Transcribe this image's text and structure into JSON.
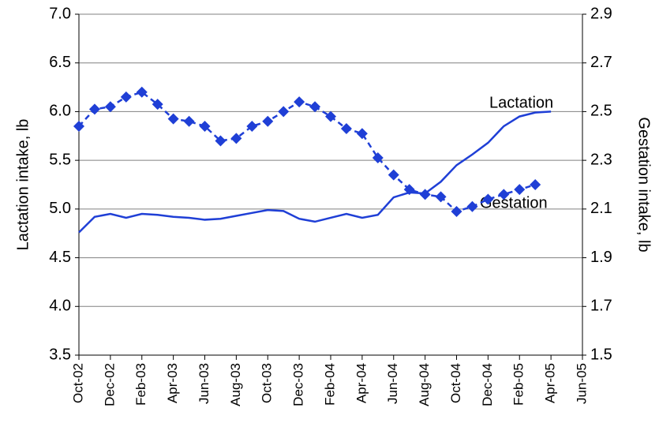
{
  "chart_data": {
    "type": "line",
    "categories": [
      "Oct-02",
      null,
      "Dec-02",
      null,
      "Feb-03",
      null,
      "Apr-03",
      null,
      "Jun-03",
      null,
      "Aug-03",
      null,
      "Oct-03",
      null,
      "Dec-03",
      null,
      "Feb-04",
      null,
      "Apr-04",
      null,
      "Jun-04",
      null,
      "Aug-04",
      null,
      "Oct-04",
      null,
      "Dec-04",
      null,
      "Feb-05",
      null,
      "Apr-05",
      null,
      "Jun-05"
    ],
    "series": [
      {
        "name": "Lactation",
        "color": "#1f3fd6",
        "axis": "y",
        "dashed": false,
        "markers": false,
        "values": [
          4.76,
          4.92,
          4.95,
          4.91,
          4.95,
          4.94,
          4.92,
          4.91,
          4.89,
          4.9,
          4.93,
          4.96,
          4.99,
          4.98,
          4.9,
          4.87,
          4.91,
          4.95,
          4.91,
          4.94,
          5.12,
          5.17,
          5.16,
          5.28,
          5.45,
          5.56,
          5.68,
          5.85,
          5.95,
          5.99,
          6.0,
          null,
          null
        ]
      },
      {
        "name": "Gestation",
        "color": "#1f3fd6",
        "axis": "y2",
        "dashed": true,
        "markers": true,
        "values": [
          2.44,
          2.51,
          2.52,
          2.56,
          2.58,
          2.53,
          2.47,
          2.46,
          2.44,
          2.38,
          2.39,
          2.44,
          2.46,
          2.5,
          2.54,
          2.52,
          2.48,
          2.43,
          2.41,
          2.31,
          2.24,
          2.18,
          2.16,
          2.15,
          2.09,
          2.11,
          2.14,
          2.16,
          2.18,
          2.2,
          null,
          null,
          null
        ]
      }
    ],
    "ylabel": "Lactation intake, lb",
    "y2label": "Gestation intake, lb",
    "ylim": [
      3.5,
      7.0
    ],
    "yticks": [
      3.5,
      {
        "value": 4.0,
        "label": "4.0"
      },
      4.5,
      {
        "value": 5.0,
        "label": "5.0"
      },
      5.5,
      {
        "value": 6.0,
        "label": "6.0"
      },
      6.5,
      {
        "value": 7.0,
        "label": "7.0"
      }
    ],
    "y2lim": [
      1.5,
      2.9
    ],
    "y2ticks": [
      1.5,
      1.7,
      1.9,
      2.1,
      2.3,
      2.5,
      2.7,
      2.9
    ],
    "grid": true,
    "annotations": [
      "Lactation",
      "Gestation"
    ]
  }
}
